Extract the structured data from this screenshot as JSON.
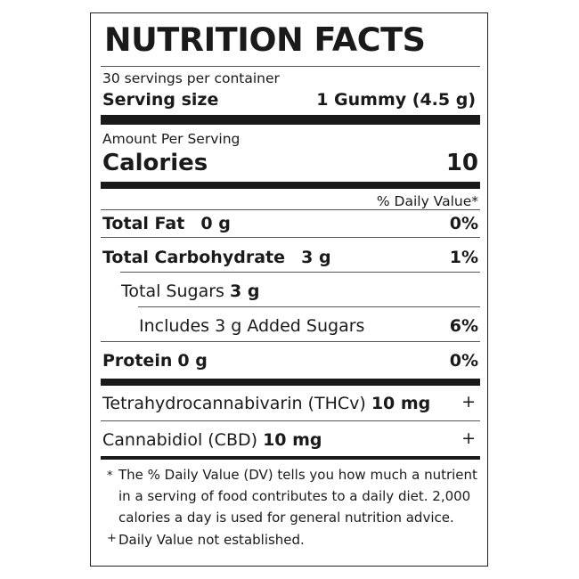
{
  "title": "NUTRITION FACTS",
  "servings_per_container": "30 servings per container",
  "serving_size": {
    "label": "Serving size",
    "value": "1 Gummy (4.5 g)"
  },
  "amount_per_serving": "Amount Per Serving",
  "calories": {
    "label": "Calories",
    "value": "10"
  },
  "daily_value_header": "% Daily Value*",
  "nutrients": {
    "total_fat": {
      "label": "Total Fat",
      "amount": "0 g",
      "dv": "0%"
    },
    "total_carbohydrate": {
      "label": "Total Carbohydrate",
      "amount": "3 g",
      "dv": "1%"
    },
    "total_sugars": {
      "label": "Total Sugars",
      "amount": "3 g"
    },
    "added_sugars": {
      "label": "Includes 3 g Added Sugars",
      "dv": "6%"
    },
    "protein": {
      "label": "Protein",
      "amount": "0 g",
      "dv": "0%"
    }
  },
  "other_ingredients": {
    "thcv": {
      "label": "Tetrahydrocannabivarin (THCv)",
      "amount": "10 mg",
      "dv": "+"
    },
    "cbd": {
      "label": "Cannabidiol (CBD)",
      "amount": "10 mg",
      "dv": "+"
    }
  },
  "footnotes": {
    "asterisk_symbol": "*",
    "asterisk_line1": "The % Daily Value (DV) tells you how much a nutrient",
    "asterisk_line2": "in a serving of food contributes to a daily diet. 2,000",
    "asterisk_line3": "calories a day is used for general nutrition advice.",
    "plus_symbol": "+",
    "plus_text": "Daily Value not established."
  }
}
